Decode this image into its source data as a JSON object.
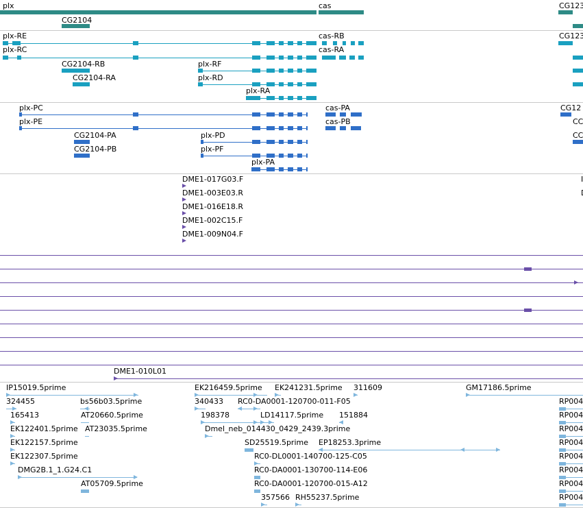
{
  "colors": {
    "genes": "#2e8b86",
    "transcripts": "#1aa0c0",
    "proteins": "#2f6fc8",
    "clones": "#6a4fa8",
    "ests": "#7fb6dd",
    "divider": "#c8c8c8"
  },
  "tracks": {
    "genes": {
      "labels": [
        "plx",
        "cas",
        "CG123",
        "CG2104"
      ]
    },
    "transcripts": {
      "labels": [
        "plx-RE",
        "cas-RB",
        "CG123",
        "plx-RC",
        "cas-RA",
        "CG2104-RB",
        "plx-RF",
        "CG2104-RA",
        "plx-RD",
        "plx-RA"
      ]
    },
    "proteins": {
      "labels": [
        "plx-PC",
        "cas-PA",
        "CG12",
        "plx-PE",
        "cas-PB",
        "CG2104-PA",
        "plx-PD",
        "CG2104-PB",
        "plx-PF",
        "plx-PA",
        "CC",
        "CC"
      ]
    },
    "clones": {
      "labels": [
        "DME1-017G03.F",
        "DME1-003E03.R",
        "DME1-016E18.R",
        "DME1-002C15.F",
        "DME1-009N04.F",
        "DME1-010L01",
        "I",
        "D"
      ]
    },
    "ests": {
      "labels": [
        "IP15019.5prime",
        "324455",
        "bs56b03.5prime",
        "165413",
        "AT20660.5prime",
        "EK122401.5prime",
        "AT23035.5prime",
        "EK122157.5prime",
        "EK122307.5prime",
        "DMG2B.1_1.G24.C1",
        "AT05709.5prime",
        "EK216459.5prime",
        "EK241231.5prime",
        "311609",
        "340433",
        "RC0-DA0001-120700-011-F05",
        "198378",
        "LD14117.5prime",
        "151884",
        "Dmel_neb_014430_0429_2439.3prime",
        "SD25519.5prime",
        "EP18253.3prime",
        "RC0-DL0001-140700-125-C05",
        "RC0-DA0001-130700-114-E06",
        "RC0-DA0001-120700-015-A12",
        "357566",
        "RH55237.5prime",
        "GM17186.5prime",
        "RP004",
        "RP004",
        "RP004",
        "RP004",
        "RP004",
        "RP004",
        "RP004",
        "RP004"
      ]
    }
  }
}
